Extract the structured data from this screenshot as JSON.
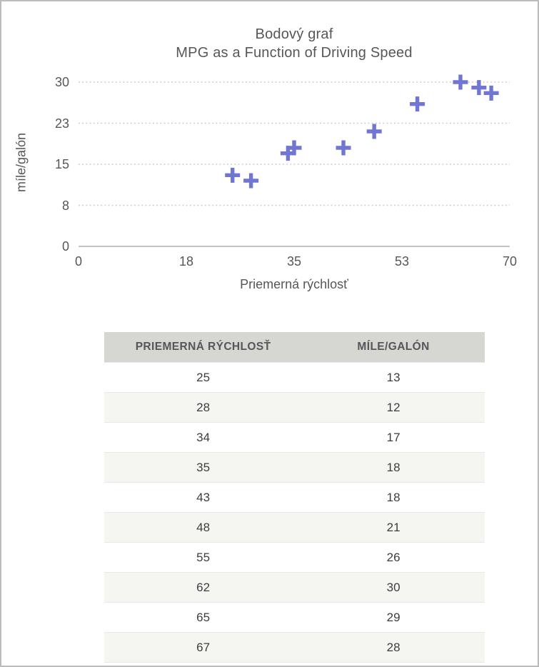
{
  "chart": {
    "title_line1": "Bodový graf",
    "title_line2": "MPG as a Function of Driving Speed",
    "y_axis_label": "míle/galón",
    "x_axis_label": "Priemerná rýchlosť"
  },
  "chart_data": {
    "type": "scatter",
    "title": "Bodový graf",
    "subtitle": "MPG as a Function of Driving Speed",
    "xlabel": "Priemerná rýchlosť",
    "ylabel": "míle/galón",
    "x": [
      25,
      28,
      34,
      35,
      43,
      48,
      55,
      62,
      65,
      67
    ],
    "y": [
      13,
      12,
      17,
      18,
      18,
      21,
      26,
      30,
      29,
      28
    ],
    "xlim": [
      0,
      70
    ],
    "ylim": [
      0,
      30
    ],
    "x_tick_labels": [
      "0",
      "18",
      "35",
      "53",
      "70"
    ],
    "x_tick_values": [
      0,
      17.5,
      35,
      52.5,
      70
    ],
    "y_tick_labels": [
      "0",
      "8",
      "15",
      "23",
      "30"
    ],
    "y_tick_values": [
      0,
      7.5,
      15,
      22.5,
      30
    ],
    "grid": "horizontal-dotted",
    "legend": "none",
    "marker": "plus",
    "marker_color": "#7176d2",
    "grid_color": "#c9c9c9",
    "axis_line_color": "#b0b0b0"
  },
  "table": {
    "headers": [
      "PRIEMERNÁ RÝCHLOSŤ",
      "MÍLE/GALÓN"
    ],
    "rows": [
      [
        "25",
        "13"
      ],
      [
        "28",
        "12"
      ],
      [
        "34",
        "17"
      ],
      [
        "35",
        "18"
      ],
      [
        "43",
        "18"
      ],
      [
        "48",
        "21"
      ],
      [
        "55",
        "26"
      ],
      [
        "62",
        "30"
      ],
      [
        "65",
        "29"
      ],
      [
        "67",
        "28"
      ]
    ]
  }
}
